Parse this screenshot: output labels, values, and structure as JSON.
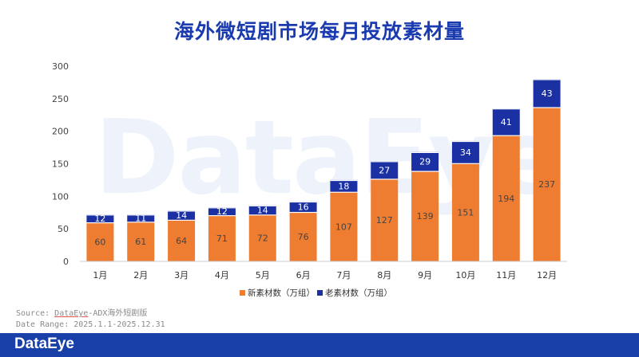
{
  "chart_data": {
    "type": "bar",
    "stacked": true,
    "title": "海外微短剧市场每月投放素材量",
    "categories": [
      "1月",
      "2月",
      "3月",
      "4月",
      "5月",
      "6月",
      "7月",
      "8月",
      "9月",
      "10月",
      "11月",
      "12月"
    ],
    "series": [
      {
        "name": "新素材数（万组）",
        "color": "#ee7d31",
        "label_color": "#444444",
        "values": [
          60,
          61,
          64,
          71,
          72,
          76,
          107,
          127,
          139,
          151,
          194,
          237
        ]
      },
      {
        "name": "老素材数（万组）",
        "color": "#1b31a3",
        "label_color": "#ffffff",
        "values": [
          12,
          11,
          14,
          12,
          14,
          16,
          18,
          27,
          29,
          34,
          41,
          43
        ]
      }
    ],
    "ylim": [
      0,
      300
    ],
    "yticks": [
      0,
      50,
      100,
      150,
      200,
      250,
      300
    ],
    "legend": "bottom-center"
  },
  "watermark": "DataEye",
  "source": {
    "line1_prefix": "Source: ",
    "line1_link": "DataEye",
    "line1_suffix": "-ADX海外短剧版",
    "line2": "Date Range: 2025.1.1-2025.12.31"
  },
  "footer": {
    "brand": "DataEye",
    "bg_color": "#1840a8"
  }
}
